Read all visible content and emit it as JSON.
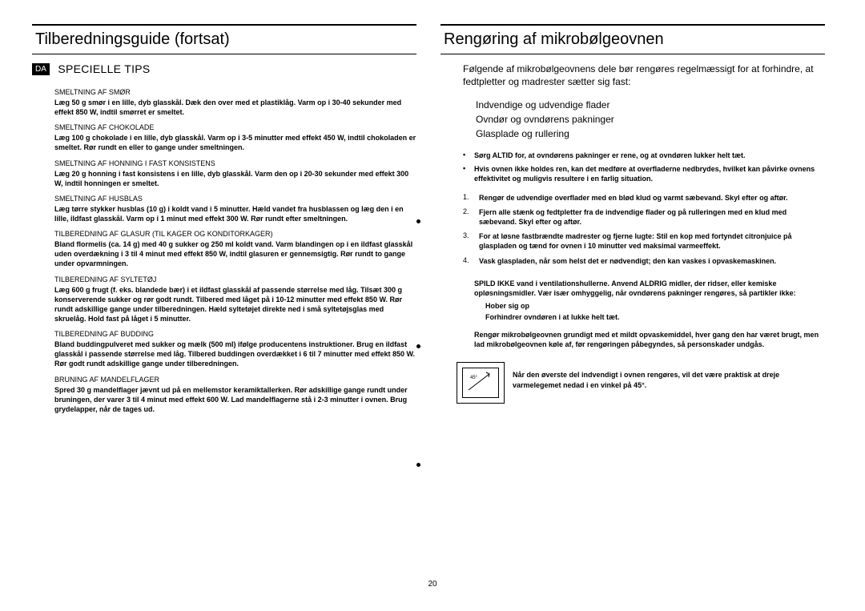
{
  "pageNumber": "20",
  "left": {
    "title": "Tilberedningsguide (fortsat)",
    "badge": "DA",
    "heading": "SPECIELLE TIPS",
    "items": [
      {
        "sub": "SMELTNING AF SMØR",
        "body": "Læg 50 g smør i en lille, dyb glasskål. Dæk den over med et plastiklåg. Varm op i 30-40 sekunder med effekt 850 W, indtil smørret er smeltet."
      },
      {
        "sub": "SMELTNING AF CHOKOLADE",
        "body": "Læg 100 g chokolade i en lille, dyb glasskål. Varm op i 3-5 minutter med effekt 450 W, indtil chokoladen er smeltet. Rør rundt en eller to gange under smeltningen."
      },
      {
        "sub": "SMELTNING AF HONNING I FAST KONSISTENS",
        "body": "Læg 20 g honning i fast konsistens i en lille, dyb glasskål. Varm den op i 20-30 sekunder med effekt 300 W, indtil honningen er smeltet."
      },
      {
        "sub": "SMELTNING AF HUSBLAS",
        "body": "Læg tørre stykker husblas (10 g) i koldt vand i 5 minutter. Hæld vandet fra husblassen og læg den i en lille, ildfast glasskål. Varm op i 1 minut med effekt 300 W. Rør rundt efter smeltningen."
      },
      {
        "sub": "TILBEREDNING AF GLASUR (TIL KAGER OG KONDITORKAGER)",
        "body": "Bland flormelis (ca. 14 g) med 40 g sukker og 250 ml koldt vand. Varm blandingen op i en ildfast glasskål uden overdækning i 3 til 4 minut med effekt 850 W, indtil glasuren er gennemsigtig. Rør rundt to gange under opvarmningen."
      },
      {
        "sub": "TILBEREDNING AF SYLTETØJ",
        "body": "Læg 600 g frugt (f. eks. blandede bær) i et ildfast glasskål af passende størrelse med låg. Tilsæt 300 g konserverende sukker og rør godt rundt. Tilbered med låget på i 10-12 minutter med effekt 850 W. Rør rundt adskillige gange under tilberedningen. Hæld syltetøjet direkte ned i små syltetøjsglas med skruelåg. Hold fast på låget i 5 minutter."
      },
      {
        "sub": "TILBEREDNING AF BUDDING",
        "body": "Bland buddingpulveret med sukker og mælk (500 ml) ifølge producentens instruktioner. Brug en ildfast glasskål i passende størrelse med låg. Tilbered buddingen overdækket i 6 til 7 minutter med effekt 850 W. Rør godt rundt adskillige gange under tilberedningen."
      },
      {
        "sub": "BRUNING AF MANDELFLAGER",
        "body": "Spred 30 g mandelflager jævnt ud på en mellemstor keramiktallerken. Rør adskillige gange rundt under bruningen, der varer 3 til 4 minut med effekt 600 W. Lad mandelflagerne stå i 2-3 minutter i ovnen. Brug grydelapper, når de tages ud."
      }
    ]
  },
  "right": {
    "title": "Rengøring af mikrobølgeovnen",
    "intro": "Følgende af mikrobølgeovnens dele bør rengøres regelmæssigt for at forhindre, at fedtpletter og madrester sætter sig fast:",
    "surfaces": [
      "Indvendige og udvendige flader",
      "Ovndør og ovndørens pakninger",
      "Glasplade og rullering"
    ],
    "bullets": [
      "Sørg ALTID for, at ovndørens pakninger er rene, og at ovndøren lukker helt tæt.",
      "Hvis ovnen ikke holdes ren, kan det medføre at overfladerne nedbrydes, hvilket kan påvirke ovnens effektivitet og muligvis resultere i en farlig situation."
    ],
    "steps": [
      "Rengør de udvendige overflader med en blød klud og varmt sæbevand. Skyl efter og aftør.",
      "Fjern alle stænk og fedtpletter fra de indvendige flader og på rulleringen med en klud med sæbevand. Skyl efter og aftør.",
      "For at løsne fastbrændte madrester og fjerne lugte: Stil en kop med fortyndet citronjuice på glaspladen og tænd for ovnen i 10 minutter ved maksimal varmeeffekt.",
      "Vask glaspladen, når som helst det er nødvendigt; den kan vaskes i opvaskemaskinen."
    ],
    "warn1": "SPILD IKKE vand i ventilationshullerne. Anvend ALDRIG midler, der ridser, eller kemiske opløsningsmidler. Vær især omhyggelig, når ovndørens pakninger rengøres, så partikler ikke:",
    "warnSub": [
      "Hober sig op",
      "Forhindrer ovndøren i at lukke helt tæt."
    ],
    "warn2": "Rengør mikrobølgeovnen grundigt med et mildt opvaskemiddel, hver gang den har været brugt, men lad mikrobølgeovnen køle af, før rengøringen påbegyndes, så personskader undgås.",
    "note": "Når den øverste del indvendigt i ovnen rengøres, vil det være praktisk at dreje varmelegemet nedad i en vinkel på 45°.",
    "iconLabel": "45°"
  }
}
